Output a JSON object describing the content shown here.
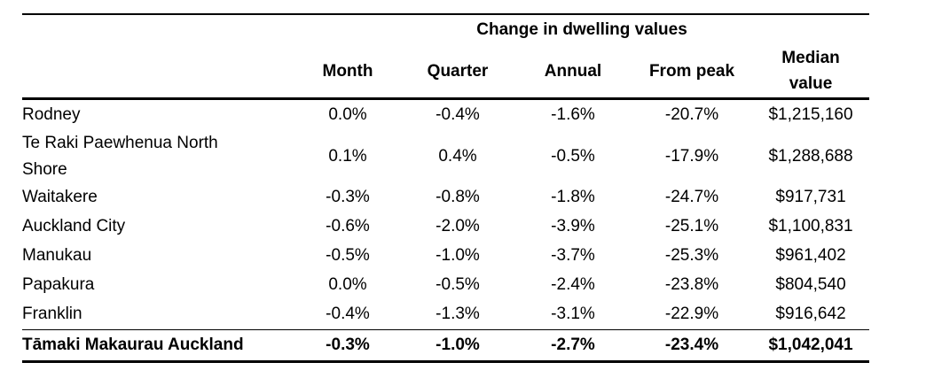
{
  "page": {
    "background": "#ffffff"
  },
  "table": {
    "span_header": "Change in dwelling values",
    "text_color": "#000000",
    "rule_color": "#000000",
    "columns": [
      {
        "label": "Month"
      },
      {
        "label": "Quarter"
      },
      {
        "label": "Annual"
      },
      {
        "label": "From peak"
      },
      {
        "label": "Median\nvalue"
      }
    ],
    "rows": [
      {
        "region": "Rodney",
        "month": "0.0%",
        "quarter": "-0.4%",
        "annual": "-1.6%",
        "from_peak": "-20.7%",
        "median_value": "$1,215,160"
      },
      {
        "region": "Te Raki Paewhenua North\nShore",
        "month": "0.1%",
        "quarter": "0.4%",
        "annual": "-0.5%",
        "from_peak": "-17.9%",
        "median_value": "$1,288,688"
      },
      {
        "region": "Waitakere",
        "month": "-0.3%",
        "quarter": "-0.8%",
        "annual": "-1.8%",
        "from_peak": "-24.7%",
        "median_value": "$917,731"
      },
      {
        "region": "Auckland City",
        "month": "-0.6%",
        "quarter": "-2.0%",
        "annual": "-3.9%",
        "from_peak": "-25.1%",
        "median_value": "$1,100,831"
      },
      {
        "region": "Manukau",
        "month": "-0.5%",
        "quarter": "-1.0%",
        "annual": "-3.7%",
        "from_peak": "-25.3%",
        "median_value": "$961,402"
      },
      {
        "region": "Papakura",
        "month": "0.0%",
        "quarter": "-0.5%",
        "annual": "-2.4%",
        "from_peak": "-23.8%",
        "median_value": "$804,540"
      },
      {
        "region": "Franklin",
        "month": "-0.4%",
        "quarter": "-1.3%",
        "annual": "-3.1%",
        "from_peak": "-22.9%",
        "median_value": "$916,642"
      }
    ],
    "total_row": {
      "region": "Tāmaki Makaurau Auckland",
      "month": "-0.3%",
      "quarter": "-1.0%",
      "annual": "-2.7%",
      "from_peak": "-23.4%",
      "median_value": "$1,042,041"
    }
  }
}
